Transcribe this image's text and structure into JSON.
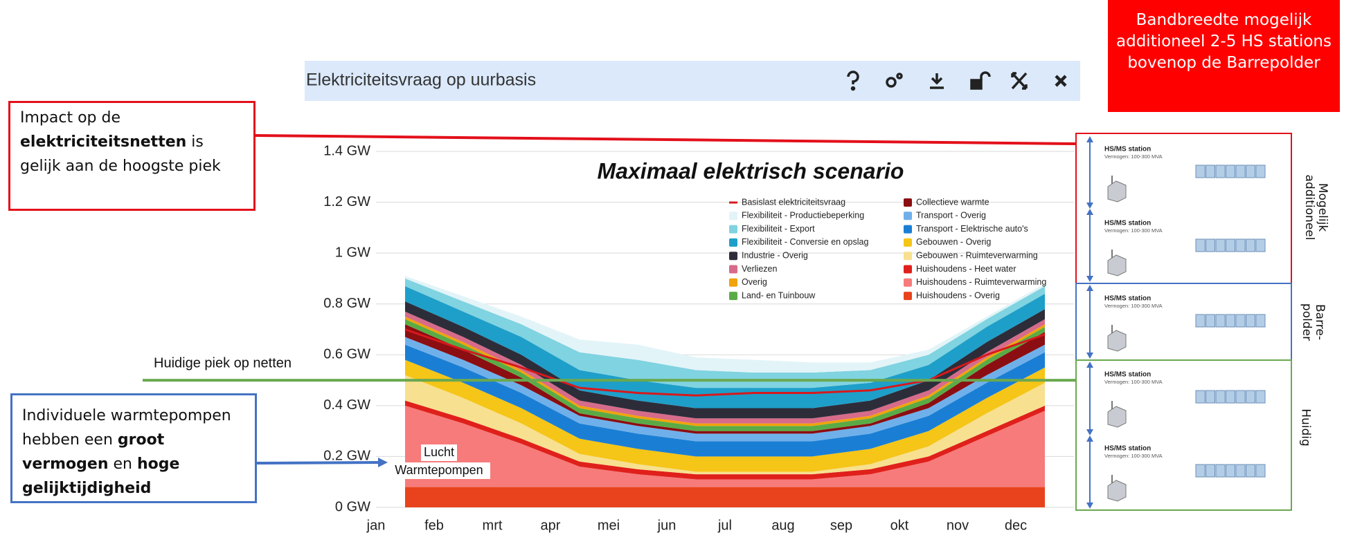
{
  "chart_data": {
    "type": "area",
    "stacked": true,
    "panel_title": "Elektriciteitsvraag op uurbasis",
    "title": "Maximaal elektrisch scenario",
    "categories": [
      "jan",
      "feb",
      "mrt",
      "apr",
      "mei",
      "jun",
      "jul",
      "aug",
      "sep",
      "okt",
      "nov",
      "dec"
    ],
    "ylim": [
      0,
      1.4
    ],
    "yticks": [
      {
        "value": 0,
        "label": "0 GW"
      },
      {
        "value": 0.2,
        "label": "0.2 GW"
      },
      {
        "value": 0.4,
        "label": "0.4 GW"
      },
      {
        "value": 0.6,
        "label": "0.6 GW"
      },
      {
        "value": 0.8,
        "label": "0.8 GW"
      },
      {
        "value": 1,
        "label": "1 GW"
      },
      {
        "value": 1.2,
        "label": "1.2 GW"
      },
      {
        "value": 1.4,
        "label": "1.4 GW"
      }
    ],
    "grid": true,
    "series": [
      {
        "name": "Basislast elektriciteitsvraag",
        "kind": "line",
        "color": "#d7191c",
        "values": [
          0.7,
          0.62,
          0.55,
          0.47,
          0.45,
          0.44,
          0.45,
          0.45,
          0.46,
          0.5,
          0.6,
          0.68
        ]
      },
      {
        "name": "Flexibiliteit - Productiebeperking",
        "color": "#e2f4f8",
        "values": [
          0.01,
          0.02,
          0.03,
          0.05,
          0.06,
          0.05,
          0.05,
          0.04,
          0.03,
          0.02,
          0.01,
          0.01
        ]
      },
      {
        "name": "Flexibiliteit - Export",
        "color": "#80d3e0",
        "values": [
          0.03,
          0.04,
          0.05,
          0.07,
          0.08,
          0.07,
          0.06,
          0.06,
          0.05,
          0.04,
          0.03,
          0.03
        ]
      },
      {
        "name": "Flexibiliteit - Conversie en opslag",
        "color": "#1e9fc9",
        "values": [
          0.06,
          0.06,
          0.07,
          0.08,
          0.08,
          0.08,
          0.08,
          0.08,
          0.07,
          0.06,
          0.06,
          0.06
        ]
      },
      {
        "name": "Industrie - Overig",
        "color": "#2d2d3a",
        "values": [
          0.04,
          0.04,
          0.04,
          0.04,
          0.04,
          0.04,
          0.04,
          0.04,
          0.04,
          0.04,
          0.04,
          0.04
        ]
      },
      {
        "name": "Verliezen",
        "color": "#d66b8a",
        "values": [
          0.02,
          0.02,
          0.02,
          0.02,
          0.02,
          0.02,
          0.02,
          0.02,
          0.02,
          0.02,
          0.02,
          0.02
        ]
      },
      {
        "name": "Overig",
        "color": "#f0a30a",
        "values": [
          0.01,
          0.01,
          0.01,
          0.01,
          0.01,
          0.01,
          0.01,
          0.01,
          0.01,
          0.01,
          0.01,
          0.01
        ]
      },
      {
        "name": "Land- en Tuinbouw",
        "color": "#5aab46",
        "values": [
          0.02,
          0.02,
          0.02,
          0.02,
          0.02,
          0.02,
          0.02,
          0.02,
          0.02,
          0.02,
          0.02,
          0.02
        ]
      },
      {
        "name": "Collectieve warmte",
        "color": "#8b0e12",
        "values": [
          0.05,
          0.04,
          0.03,
          0.01,
          0.01,
          0.01,
          0.01,
          0.01,
          0.01,
          0.02,
          0.04,
          0.05
        ]
      },
      {
        "name": "Transport - Overig",
        "color": "#6fb0ea",
        "values": [
          0.03,
          0.03,
          0.03,
          0.03,
          0.03,
          0.03,
          0.03,
          0.03,
          0.03,
          0.03,
          0.03,
          0.03
        ]
      },
      {
        "name": "Transport - Elektrische auto's",
        "color": "#1a7fd4",
        "values": [
          0.06,
          0.06,
          0.06,
          0.06,
          0.06,
          0.06,
          0.06,
          0.06,
          0.06,
          0.06,
          0.06,
          0.06
        ]
      },
      {
        "name": "Gebouwen - Overig",
        "color": "#f5c518",
        "values": [
          0.06,
          0.06,
          0.06,
          0.06,
          0.06,
          0.06,
          0.06,
          0.06,
          0.06,
          0.06,
          0.06,
          0.06
        ]
      },
      {
        "name": "Gebouwen - Ruimteverwarming",
        "color": "#f7e08f",
        "values": [
          0.1,
          0.08,
          0.06,
          0.03,
          0.02,
          0.01,
          0.01,
          0.01,
          0.02,
          0.04,
          0.07,
          0.09
        ]
      },
      {
        "name": "Huishoudens - Heet water",
        "color": "#e0201b",
        "values": [
          0.02,
          0.02,
          0.02,
          0.02,
          0.02,
          0.02,
          0.02,
          0.02,
          0.02,
          0.02,
          0.02,
          0.02
        ]
      },
      {
        "name": "Huishoudens - Ruimteverwarming",
        "color": "#f77b7b",
        "values": [
          0.32,
          0.25,
          0.17,
          0.08,
          0.05,
          0.03,
          0.03,
          0.03,
          0.05,
          0.1,
          0.2,
          0.3
        ]
      },
      {
        "name": "Huishoudens - Overig",
        "color": "#e8431c",
        "values": [
          0.08,
          0.08,
          0.08,
          0.08,
          0.08,
          0.08,
          0.08,
          0.08,
          0.08,
          0.08,
          0.08,
          0.08
        ]
      }
    ],
    "current_peak": {
      "label": "Huidige piek op netten",
      "value": 0.5,
      "color": "#6aa84f"
    },
    "heatpump_label": [
      "Lucht",
      "Warmtepompen"
    ]
  },
  "impact_note": [
    {
      "text": "Impact op de "
    },
    {
      "text": "elektriciteitsnetten",
      "bold": true
    },
    {
      "text": " is gelijk aan de hoogste piek"
    }
  ],
  "heatpump_note": [
    {
      "text": "Individuele warmtepompen hebben een "
    },
    {
      "text": "groot vermogen",
      "bold": true
    },
    {
      "text": " en "
    },
    {
      "text": "hoge gelijktijdigheid",
      "bold": true
    }
  ],
  "bandwidth_note": "Bandbreedte mogelijk additioneel 2-5 HS stations bovenop de Barrepolder",
  "stations": [
    {
      "title": "HS/MS station",
      "subtitle": "Vermogen: 100-300 MVA"
    },
    {
      "title": "HS/MS station",
      "subtitle": "Vermogen: 100-300 MVA"
    },
    {
      "title": "HS/MS station",
      "subtitle": "Vermogen: 100-300 MVA"
    },
    {
      "title": "HS/MS station",
      "subtitle": "Vermogen: 100-300 MVA"
    },
    {
      "title": "HS/MS station",
      "subtitle": "Vermogen: 100-300 MVA"
    }
  ],
  "side_labels": [
    [
      "Mogelijk",
      "additioneel"
    ],
    [
      "Barre-",
      "polder"
    ],
    [
      "Huidig"
    ]
  ]
}
